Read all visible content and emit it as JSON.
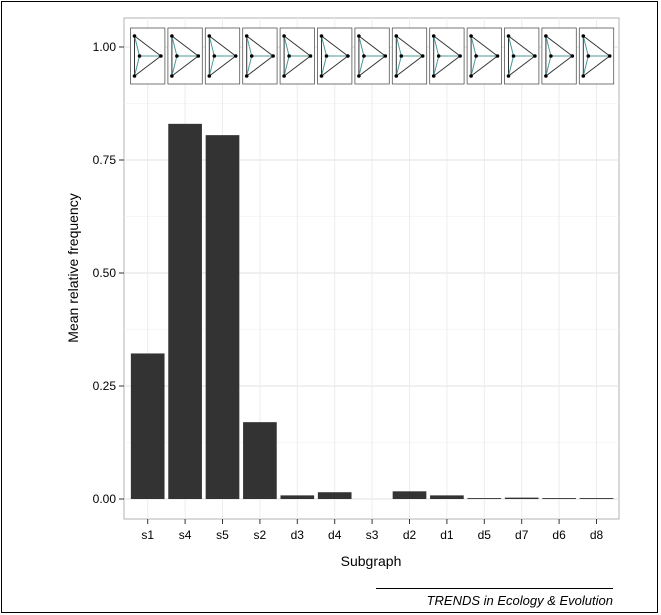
{
  "chart_data": {
    "type": "bar",
    "categories": [
      "s1",
      "s4",
      "s5",
      "s2",
      "d3",
      "d4",
      "s3",
      "d2",
      "d1",
      "d5",
      "d7",
      "d6",
      "d8"
    ],
    "values": [
      0.322,
      0.83,
      0.805,
      0.17,
      0.008,
      0.015,
      0.0,
      0.017,
      0.008,
      0.002,
      0.003,
      0.002,
      0.002
    ],
    "title": "",
    "xlabel": "Subgraph",
    "ylabel": "Mean relative frequency",
    "ylim": [
      0,
      1.0
    ],
    "yticks": [
      {
        "value": 0.0,
        "label": "0.00"
      },
      {
        "value": 0.25,
        "label": "0.25"
      },
      {
        "value": 0.5,
        "label": "0.50"
      },
      {
        "value": 0.75,
        "label": "0.75"
      },
      {
        "value": 1.0,
        "label": "1.00"
      }
    ],
    "grid": true,
    "bar_color": "#333333",
    "motif_edge_color": "#4a9a9a",
    "motif_node_color": "#000000"
  },
  "credit": "TRENDS in Ecology & Evolution"
}
